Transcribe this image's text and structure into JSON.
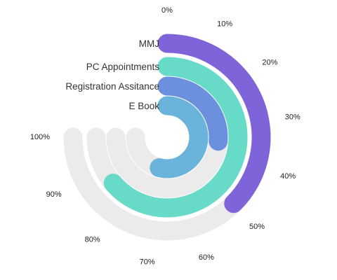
{
  "chart_data": {
    "type": "radial-bar",
    "value_unit": "%",
    "value_range": [
      0,
      100
    ],
    "track_color": "#ebebeb",
    "tick_labels": [
      "0%",
      "10%",
      "20%",
      "30%",
      "40%",
      "50%",
      "60%",
      "70%",
      "80%",
      "90%",
      "100%"
    ],
    "series": [
      {
        "name": "MMJ",
        "value": 50,
        "color": "#7f63d9"
      },
      {
        "name": "PC Appointments",
        "value": 85,
        "color": "#67dbc8"
      },
      {
        "name": "Registration Assitance",
        "value": 35,
        "color": "#6b91de"
      },
      {
        "name": "E Book",
        "value": 72,
        "color": "#6ab3db"
      }
    ]
  }
}
